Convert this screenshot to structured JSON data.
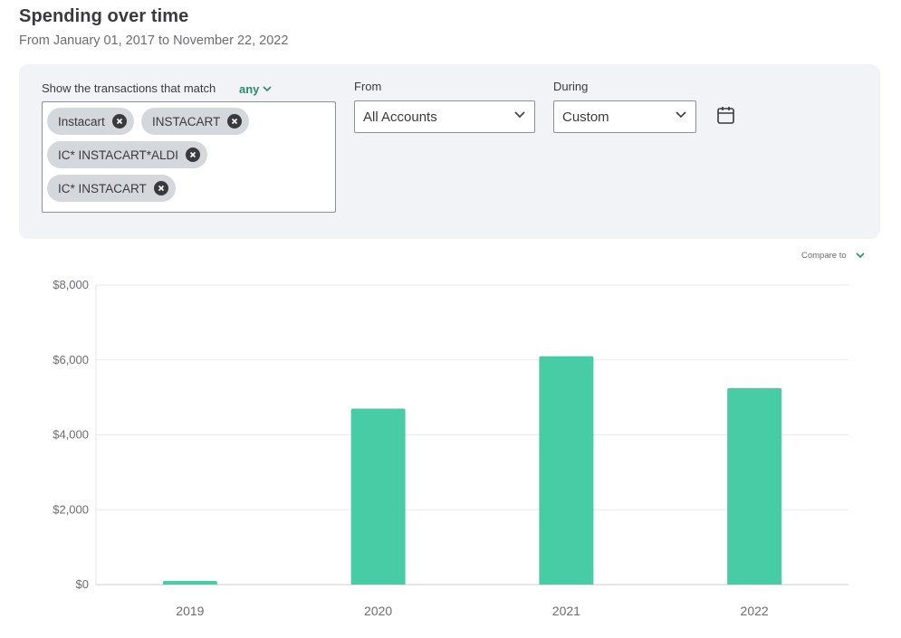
{
  "header": {
    "title": "Spending over time",
    "subtitle": "From January 01, 2017 to November 22, 2022"
  },
  "filters": {
    "match_label": "Show the transactions that match",
    "match_mode": "any",
    "chips": [
      {
        "label": "Instacart"
      },
      {
        "label": "INSTACART"
      },
      {
        "label": "IC* INSTACART*ALDI"
      },
      {
        "label": "IC* INSTACART"
      }
    ],
    "from_label": "From",
    "from_value": "All Accounts",
    "during_label": "During",
    "during_value": "Custom"
  },
  "compare_label": "Compare to",
  "colors": {
    "accent": "#2d8a6e",
    "bar": "#48cca6",
    "panel": "#f2f3f6"
  },
  "icons": {
    "chip_remove": "close-icon",
    "dropdown": "chevron-down-icon",
    "calendar": "calendar-icon"
  },
  "chart_data": {
    "type": "bar",
    "categories": [
      "2019",
      "2020",
      "2021",
      "2022"
    ],
    "values": [
      100,
      4700,
      6100,
      5250
    ],
    "yticks": [
      0,
      2000,
      4000,
      6000,
      8000
    ],
    "ytick_labels": [
      "$0",
      "$2,000",
      "$4,000",
      "$6,000",
      "$8,000"
    ],
    "ylim": [
      0,
      8000
    ],
    "title": "",
    "xlabel": "",
    "ylabel": "",
    "grid": true,
    "legend": "none"
  }
}
